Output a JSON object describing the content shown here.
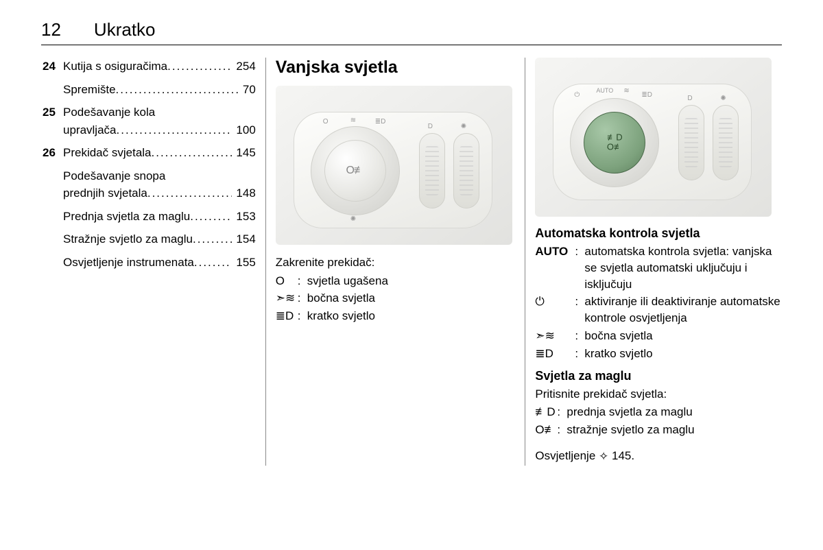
{
  "header": {
    "page_number": "12",
    "section": "Ukratko"
  },
  "toc": [
    {
      "num": "24",
      "text": "Kutija s osiguračima",
      "page": "254"
    },
    {
      "num": "",
      "text": "Spremište",
      "page": "70"
    },
    {
      "num": "25",
      "text": "Podešavanje kola upravljača",
      "page": "100"
    },
    {
      "num": "26",
      "text": "Prekidač svjetala",
      "page": "145"
    },
    {
      "num": "",
      "text": "Podešavanje snopa prednjih svjetala",
      "page": "148"
    },
    {
      "num": "",
      "text": "Prednja svjetla za maglu",
      "page": "153"
    },
    {
      "num": "",
      "text": "Stražnje svjetlo za maglu",
      "page": "154"
    },
    {
      "num": "",
      "text": "Osvjetljenje instrumenata",
      "page": "155"
    }
  ],
  "col2": {
    "heading": "Vanjska svjetla",
    "instruction": "Zakrenite prekidač:",
    "rows": [
      {
        "sym": "O",
        "desc": "svjetla ugašena"
      },
      {
        "sym": "➣≋",
        "desc": "bočna svjetla"
      },
      {
        "sym": "≣D",
        "desc": "kratko svjetlo"
      }
    ]
  },
  "col3": {
    "h3_auto": "Automatska kontrola svjetla",
    "rows_auto": [
      {
        "sym": "AUTO",
        "desc": "automatska kontrola svjetla: vanjska se svjetla automatski uključuju i isključuju"
      },
      {
        "sym": "⏻",
        "desc": "aktiviranje ili deaktiviranje automatske kontrole osvjetljenja"
      },
      {
        "sym": "➣≋",
        "desc": "bočna svjetla"
      },
      {
        "sym": "≣D",
        "desc": "kratko svjetlo"
      }
    ],
    "h3_fog": "Svjetla za maglu",
    "fog_instruction": "Pritisnite prekidač svjetla:",
    "rows_fog": [
      {
        "sym": "≢D",
        "desc": "prednja svjetla za maglu"
      },
      {
        "sym": "O≢",
        "desc": "stražnje svjetlo za maglu"
      }
    ],
    "ref_text": "Osvjetljenje",
    "ref_page": "145."
  },
  "style": {
    "page_bg": "#ffffff",
    "text_color": "#000000",
    "rule_color": "#000000",
    "col_divider": "#888888",
    "body_fontsize": 17,
    "h2_fontsize": 25,
    "h3_fontsize": 18,
    "header_fontsize": 26,
    "image": {
      "bg_gradient": [
        "#f5f5f3",
        "#e2e2df"
      ],
      "panel_gradient": [
        "#fdfdfb",
        "#e8e8e4"
      ],
      "dial_gradient": [
        "#fafaf8",
        "#cfcfca"
      ],
      "dial_green_gradient": [
        "#a8c8a8",
        "#5e805e"
      ],
      "thumb_gradient": [
        "#f0f0ed",
        "#dedeD8"
      ]
    }
  }
}
